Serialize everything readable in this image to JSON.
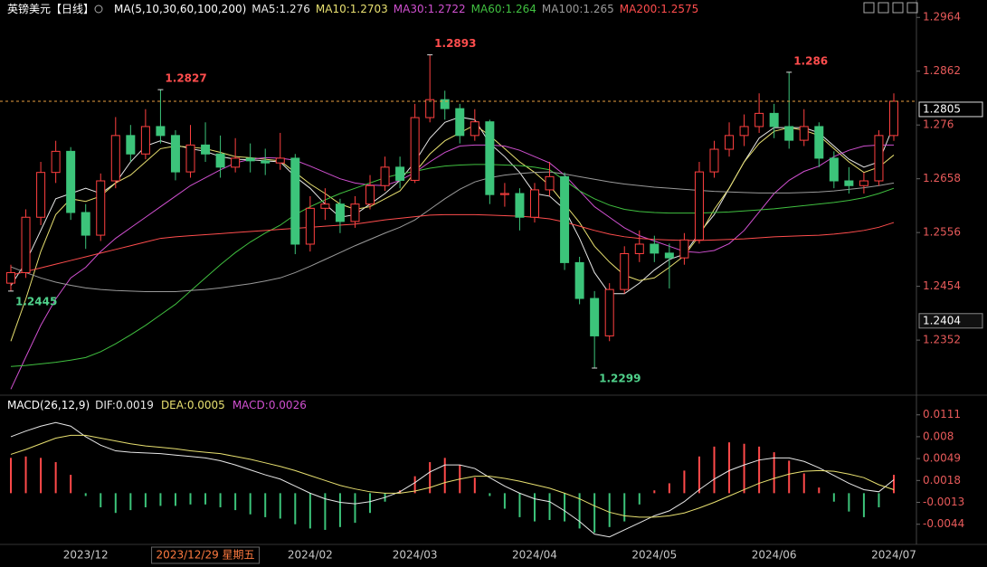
{
  "title": "英镑美元【日线】",
  "indicator": "MA(5,10,30,60,100,200)",
  "chart_data": [
    {
      "type": "candlestick",
      "categories": [
        null,
        null,
        null,
        null,
        null,
        "2023/12",
        null,
        null,
        null,
        null,
        null,
        null,
        null,
        {
          "label": "2023/12/29 星期五",
          "cursor": true
        },
        null,
        null,
        null,
        null,
        null,
        null,
        "2024/02",
        null,
        null,
        null,
        null,
        null,
        null,
        "2024/03",
        null,
        null,
        null,
        null,
        null,
        null,
        null,
        "2024/04",
        null,
        null,
        null,
        null,
        null,
        null,
        null,
        "2024/05",
        null,
        null,
        null,
        null,
        null,
        null,
        null,
        "2024/06",
        null,
        null,
        null,
        null,
        null,
        null,
        null,
        "2024/07"
      ],
      "candles": [
        [
          1.246,
          1.2495,
          1.2445,
          1.248
        ],
        [
          1.248,
          1.26,
          1.247,
          1.2585
        ],
        [
          1.2585,
          1.269,
          1.257,
          1.267
        ],
        [
          1.267,
          1.273,
          1.265,
          1.271
        ],
        [
          1.271,
          1.2718,
          1.258,
          1.2594
        ],
        [
          1.2594,
          1.261,
          1.2525,
          1.2551
        ],
        [
          1.2551,
          1.2668,
          1.254,
          1.2654
        ],
        [
          1.2654,
          1.2775,
          1.264,
          1.274
        ],
        [
          1.274,
          1.276,
          1.269,
          1.2705
        ],
        [
          1.2705,
          1.279,
          1.2695,
          1.2757
        ],
        [
          1.2757,
          1.2827,
          1.2725,
          1.274
        ],
        [
          1.274,
          1.275,
          1.2655,
          1.2671
        ],
        [
          1.2671,
          1.276,
          1.266,
          1.2722
        ],
        [
          1.2722,
          1.2765,
          1.269,
          1.2705
        ],
        [
          1.2705,
          1.274,
          1.266,
          1.268
        ],
        [
          1.268,
          1.2735,
          1.267,
          1.2697
        ],
        [
          1.2697,
          1.2725,
          1.267,
          1.2692
        ],
        [
          1.2692,
          1.2715,
          1.2665,
          1.2688
        ],
        [
          1.2688,
          1.2745,
          1.2675,
          1.2697
        ],
        [
          1.2697,
          1.2705,
          1.2515,
          1.2534
        ],
        [
          1.2534,
          1.2625,
          1.252,
          1.2602
        ],
        [
          1.2602,
          1.264,
          1.258,
          1.261
        ],
        [
          1.261,
          1.262,
          1.2555,
          1.2577
        ],
        [
          1.2577,
          1.2625,
          1.2565,
          1.261
        ],
        [
          1.261,
          1.2665,
          1.26,
          1.2645
        ],
        [
          1.2645,
          1.27,
          1.2635,
          1.268
        ],
        [
          1.268,
          1.27,
          1.264,
          1.2655
        ],
        [
          1.2655,
          1.28,
          1.265,
          1.2774
        ],
        [
          1.2774,
          1.2893,
          1.2765,
          1.2808
        ],
        [
          1.2808,
          1.2825,
          1.277,
          1.2791
        ],
        [
          1.2791,
          1.28,
          1.2725,
          1.274
        ],
        [
          1.274,
          1.279,
          1.273,
          1.2766
        ],
        [
          1.2766,
          1.277,
          1.261,
          1.2628
        ],
        [
          1.2628,
          1.265,
          1.2605,
          1.263
        ],
        [
          1.263,
          1.264,
          1.256,
          1.2585
        ],
        [
          1.2585,
          1.265,
          1.2575,
          1.2637
        ],
        [
          1.2637,
          1.269,
          1.2625,
          1.2662
        ],
        [
          1.2662,
          1.267,
          1.2485,
          1.2499
        ],
        [
          1.2499,
          1.251,
          1.242,
          1.2431
        ],
        [
          1.2431,
          1.2445,
          1.2299,
          1.236
        ],
        [
          1.236,
          1.246,
          1.235,
          1.2448
        ],
        [
          1.2448,
          1.253,
          1.244,
          1.2516
        ],
        [
          1.2516,
          1.256,
          1.25,
          1.2534
        ],
        [
          1.2534,
          1.255,
          1.25,
          1.2517
        ],
        [
          1.2517,
          1.2535,
          1.245,
          1.2508
        ],
        [
          1.2508,
          1.2555,
          1.2495,
          1.2542
        ],
        [
          1.2542,
          1.269,
          1.2535,
          1.2671
        ],
        [
          1.2671,
          1.273,
          1.266,
          1.2714
        ],
        [
          1.2714,
          1.2765,
          1.27,
          1.274
        ],
        [
          1.274,
          1.278,
          1.272,
          1.2757
        ],
        [
          1.2757,
          1.282,
          1.2745,
          1.2782
        ],
        [
          1.2782,
          1.28,
          1.2735,
          1.2757
        ],
        [
          1.2757,
          1.286,
          1.2715,
          1.2731
        ],
        [
          1.2731,
          1.279,
          1.272,
          1.2757
        ],
        [
          1.2757,
          1.2765,
          1.268,
          1.2697
        ],
        [
          1.2697,
          1.271,
          1.264,
          1.2654
        ],
        [
          1.2654,
          1.268,
          1.263,
          1.2645
        ],
        [
          1.2645,
          1.267,
          1.263,
          1.2654
        ],
        [
          1.2654,
          1.275,
          1.2645,
          1.274
        ],
        [
          1.274,
          1.282,
          1.273,
          1.2805
        ]
      ],
      "up_color": "#ff4040",
      "down_color": "#3cc47a",
      "series": [
        {
          "name": "MA5",
          "color": "#e8e8e8",
          "values": [
            1.2455,
            1.25,
            1.256,
            1.262,
            1.263,
            1.264,
            1.263,
            1.265,
            1.269,
            1.272,
            1.273,
            1.2722,
            1.2715,
            1.271,
            1.27,
            1.2695,
            1.2694,
            1.2692,
            1.269,
            1.2662,
            1.264,
            1.261,
            1.2585,
            1.259,
            1.261,
            1.263,
            1.2655,
            1.269,
            1.2735,
            1.2765,
            1.2775,
            1.277,
            1.2725,
            1.27,
            1.267,
            1.263,
            1.2625,
            1.26,
            1.2545,
            1.248,
            1.244,
            1.244,
            1.246,
            1.2485,
            1.2505,
            1.2515,
            1.2555,
            1.259,
            1.264,
            1.269,
            1.2735,
            1.2755,
            1.2755,
            1.2755,
            1.2745,
            1.272,
            1.2695,
            1.268,
            1.269,
            1.276
          ]
        },
        {
          "name": "MA10",
          "color": "#e8e070",
          "values": [
            1.235,
            1.243,
            1.252,
            1.259,
            1.262,
            1.2615,
            1.2625,
            1.265,
            1.2665,
            1.269,
            1.2715,
            1.272,
            1.2718,
            1.2715,
            1.2708,
            1.27,
            1.2698,
            1.2695,
            1.2692,
            1.267,
            1.2648,
            1.263,
            1.261,
            1.26,
            1.2605,
            1.262,
            1.2635,
            1.267,
            1.2705,
            1.273,
            1.2745,
            1.276,
            1.274,
            1.2715,
            1.269,
            1.267,
            1.2645,
            1.261,
            1.2575,
            1.253,
            1.25,
            1.2475,
            1.2465,
            1.247,
            1.249,
            1.2512,
            1.255,
            1.26,
            1.264,
            1.269,
            1.2725,
            1.2748,
            1.2755,
            1.275,
            1.274,
            1.2715,
            1.269,
            1.267,
            1.268,
            1.2703
          ]
        },
        {
          "name": "MA30",
          "color": "#d050d0",
          "values": [
            1.2259,
            1.232,
            1.238,
            1.243,
            1.247,
            1.249,
            1.252,
            1.2545,
            1.2565,
            1.2585,
            1.2605,
            1.2625,
            1.2645,
            1.266,
            1.2675,
            1.2688,
            1.2695,
            1.2698,
            1.2697,
            1.2693,
            1.2682,
            1.267,
            1.2658,
            1.265,
            1.2646,
            1.2645,
            1.2655,
            1.267,
            1.269,
            1.2708,
            1.272,
            1.2722,
            1.2722,
            1.272,
            1.2712,
            1.27,
            1.2688,
            1.2665,
            1.2635,
            1.2605,
            1.2585,
            1.2565,
            1.255,
            1.254,
            1.253,
            1.252,
            1.2518,
            1.2522,
            1.2535,
            1.256,
            1.2595,
            1.263,
            1.2655,
            1.2672,
            1.2682,
            1.27,
            1.2712,
            1.272,
            1.2722,
            1.2722
          ]
        },
        {
          "name": "MA60",
          "color": "#40c040",
          "values": [
            1.2302,
            1.2304,
            1.2307,
            1.231,
            1.2314,
            1.2319,
            1.233,
            1.2345,
            1.2362,
            1.238,
            1.24,
            1.242,
            1.2445,
            1.247,
            1.2495,
            1.2518,
            1.2538,
            1.2555,
            1.257,
            1.259,
            1.2605,
            1.2618,
            1.263,
            1.264,
            1.265,
            1.266,
            1.2667,
            1.2672,
            1.2678,
            1.2682,
            1.2684,
            1.2685,
            1.2685,
            1.2684,
            1.2683,
            1.268,
            1.2675,
            1.2655,
            1.2635,
            1.262,
            1.2608,
            1.26,
            1.2596,
            1.2594,
            1.2593,
            1.2593,
            1.2593,
            1.2594,
            1.2595,
            1.2597,
            1.2599,
            1.2601,
            1.2604,
            1.2607,
            1.261,
            1.2613,
            1.2617,
            1.2622,
            1.263,
            1.264
          ]
        },
        {
          "name": "MA100",
          "color": "#9a9a9a",
          "values": [
            1.2491,
            1.248,
            1.247,
            1.2462,
            1.2456,
            1.2451,
            1.2448,
            1.2446,
            1.2445,
            1.2444,
            1.2444,
            1.2444,
            1.2446,
            1.2448,
            1.2451,
            1.2455,
            1.2459,
            1.2464,
            1.247,
            1.248,
            1.2492,
            1.2505,
            1.2518,
            1.2531,
            1.2543,
            1.2555,
            1.2566,
            1.258,
            1.26,
            1.262,
            1.2638,
            1.2652,
            1.266,
            1.2665,
            1.2668,
            1.267,
            1.2671,
            1.2667,
            1.2662,
            1.2657,
            1.2652,
            1.2648,
            1.2645,
            1.2642,
            1.264,
            1.2638,
            1.2636,
            1.2634,
            1.2633,
            1.2632,
            1.2631,
            1.2631,
            1.2631,
            1.2632,
            1.2633,
            1.2635,
            1.2638,
            1.2641,
            1.2645,
            1.265
          ]
        },
        {
          "name": "MA200",
          "color": "#ff4d4d",
          "values": [
            1.2475,
            1.2482,
            1.2489,
            1.2496,
            1.2503,
            1.251,
            1.2517,
            1.2524,
            1.2531,
            1.2538,
            1.2545,
            1.2548,
            1.255,
            1.2552,
            1.2554,
            1.2556,
            1.2558,
            1.256,
            1.2562,
            1.2564,
            1.2566,
            1.2568,
            1.257,
            1.2572,
            1.2576,
            1.258,
            1.2583,
            1.2586,
            1.2589,
            1.259,
            1.259,
            1.259,
            1.2589,
            1.2588,
            1.2587,
            1.2585,
            1.2582,
            1.2576,
            1.2568,
            1.256,
            1.2553,
            1.2548,
            1.2545,
            1.2543,
            1.2542,
            1.2541,
            1.2541,
            1.2542,
            1.2543,
            1.2544,
            1.2546,
            1.2548,
            1.2549,
            1.255,
            1.2551,
            1.2553,
            1.2556,
            1.256,
            1.2566,
            1.2575
          ]
        }
      ],
      "high_labels": [
        1.2827,
        1.2893,
        1.286
      ],
      "low_labels": [
        1.2445,
        1.2299
      ],
      "last_price": 1.2805,
      "cursor_price": 1.2404,
      "ylim": [
        1.2251,
        1.2997
      ],
      "yticks": [
        1.2964,
        1.2862,
        1.276,
        1.2658,
        1.2556,
        1.2454,
        1.2352
      ]
    },
    {
      "type": "macd",
      "title": "MACD(26,12,9)",
      "series": [
        {
          "name": "DIF",
          "color": "#e8e8e8",
          "values": [
            0.008,
            0.0088,
            0.0095,
            0.01,
            0.0095,
            0.008,
            0.0068,
            0.006,
            0.0058,
            0.0057,
            0.0056,
            0.0054,
            0.0052,
            0.005,
            0.0046,
            0.004,
            0.0033,
            0.0026,
            0.002,
            0.001,
            0.0,
            -0.0008,
            -0.0013,
            -0.0015,
            -0.0012,
            -0.0006,
            0.0002,
            0.0015,
            0.003,
            0.004,
            0.004,
            0.0035,
            0.0022,
            0.001,
            0.0,
            -0.0008,
            -0.0012,
            -0.0025,
            -0.004,
            -0.0058,
            -0.0062,
            -0.0052,
            -0.0042,
            -0.0032,
            -0.0025,
            -0.0012,
            0.0005,
            0.002,
            0.0032,
            0.004,
            0.0047,
            0.005,
            0.005,
            0.0045,
            0.0036,
            0.0025,
            0.0014,
            0.0005,
            0.0002,
            0.0019
          ]
        },
        {
          "name": "DEA",
          "color": "#e8e070",
          "values": [
            0.0055,
            0.0062,
            0.007,
            0.0078,
            0.0082,
            0.0082,
            0.0078,
            0.0074,
            0.007,
            0.0067,
            0.0065,
            0.0063,
            0.006,
            0.0058,
            0.0056,
            0.0052,
            0.0048,
            0.0043,
            0.0038,
            0.0032,
            0.0025,
            0.0018,
            0.0011,
            0.0006,
            0.0002,
            0.0,
            0.0,
            0.0003,
            0.0008,
            0.0015,
            0.002,
            0.0024,
            0.0024,
            0.0021,
            0.0017,
            0.0012,
            0.0007,
            0.0,
            -0.0008,
            -0.0018,
            -0.0027,
            -0.0032,
            -0.0034,
            -0.0034,
            -0.0032,
            -0.0028,
            -0.0021,
            -0.0013,
            -0.0004,
            0.0005,
            0.0014,
            0.0021,
            0.0027,
            0.0031,
            0.0032,
            0.0031,
            0.0027,
            0.0022,
            0.0012,
            0.0005
          ]
        }
      ],
      "histogram": {
        "name": "MACD",
        "color": "#d050d0",
        "up_color": "#ff4a4a",
        "down_color": "#3cc47a",
        "values": [
          0.005,
          0.0052,
          0.005,
          0.0044,
          0.0026,
          -0.0004,
          -0.002,
          -0.0028,
          -0.0024,
          -0.002,
          -0.0018,
          -0.0018,
          -0.0016,
          -0.0016,
          -0.002,
          -0.0024,
          -0.003,
          -0.0034,
          -0.0036,
          -0.0044,
          -0.005,
          -0.0052,
          -0.0048,
          -0.0042,
          -0.0028,
          -0.0012,
          0.0004,
          0.0024,
          0.0044,
          0.005,
          0.004,
          0.0022,
          -0.0004,
          -0.0022,
          -0.0034,
          -0.004,
          -0.0038,
          -0.004,
          -0.005,
          -0.0056,
          -0.0048,
          -0.004,
          -0.0016,
          0.0004,
          0.0014,
          0.0032,
          0.0052,
          0.0066,
          0.0072,
          0.007,
          0.0066,
          0.0058,
          0.0046,
          0.0028,
          0.0008,
          -0.0012,
          -0.0026,
          -0.0034,
          -0.002,
          0.0026
        ]
      },
      "ylim": [
        -0.007,
        0.0135
      ],
      "yticks": [
        0.0111,
        0.008,
        0.0049,
        0.0018,
        -0.0013,
        -0.0044
      ]
    }
  ]
}
